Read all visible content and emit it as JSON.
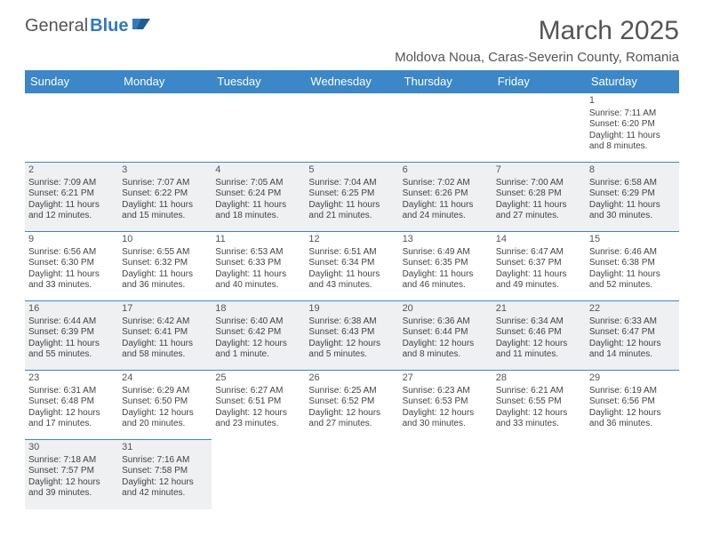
{
  "logo": {
    "part1": "General",
    "part2": "Blue"
  },
  "title": "March 2025",
  "location": "Moldova Noua, Caras-Severin County, Romania",
  "colors": {
    "header_bg": "#3b87c8",
    "header_text": "#ffffff",
    "shade_bg": "#eef0f1",
    "border": "#3b87c8",
    "text": "#444444",
    "title_text": "#555555"
  },
  "weekdays": [
    "Sunday",
    "Monday",
    "Tuesday",
    "Wednesday",
    "Thursday",
    "Friday",
    "Saturday"
  ],
  "weeks": [
    [
      null,
      null,
      null,
      null,
      null,
      null,
      {
        "n": "1",
        "sr": "Sunrise: 7:11 AM",
        "ss": "Sunset: 6:20 PM",
        "d1": "Daylight: 11 hours",
        "d2": "and 8 minutes."
      }
    ],
    [
      {
        "n": "2",
        "sr": "Sunrise: 7:09 AM",
        "ss": "Sunset: 6:21 PM",
        "d1": "Daylight: 11 hours",
        "d2": "and 12 minutes."
      },
      {
        "n": "3",
        "sr": "Sunrise: 7:07 AM",
        "ss": "Sunset: 6:22 PM",
        "d1": "Daylight: 11 hours",
        "d2": "and 15 minutes."
      },
      {
        "n": "4",
        "sr": "Sunrise: 7:05 AM",
        "ss": "Sunset: 6:24 PM",
        "d1": "Daylight: 11 hours",
        "d2": "and 18 minutes."
      },
      {
        "n": "5",
        "sr": "Sunrise: 7:04 AM",
        "ss": "Sunset: 6:25 PM",
        "d1": "Daylight: 11 hours",
        "d2": "and 21 minutes."
      },
      {
        "n": "6",
        "sr": "Sunrise: 7:02 AM",
        "ss": "Sunset: 6:26 PM",
        "d1": "Daylight: 11 hours",
        "d2": "and 24 minutes."
      },
      {
        "n": "7",
        "sr": "Sunrise: 7:00 AM",
        "ss": "Sunset: 6:28 PM",
        "d1": "Daylight: 11 hours",
        "d2": "and 27 minutes."
      },
      {
        "n": "8",
        "sr": "Sunrise: 6:58 AM",
        "ss": "Sunset: 6:29 PM",
        "d1": "Daylight: 11 hours",
        "d2": "and 30 minutes."
      }
    ],
    [
      {
        "n": "9",
        "sr": "Sunrise: 6:56 AM",
        "ss": "Sunset: 6:30 PM",
        "d1": "Daylight: 11 hours",
        "d2": "and 33 minutes."
      },
      {
        "n": "10",
        "sr": "Sunrise: 6:55 AM",
        "ss": "Sunset: 6:32 PM",
        "d1": "Daylight: 11 hours",
        "d2": "and 36 minutes."
      },
      {
        "n": "11",
        "sr": "Sunrise: 6:53 AM",
        "ss": "Sunset: 6:33 PM",
        "d1": "Daylight: 11 hours",
        "d2": "and 40 minutes."
      },
      {
        "n": "12",
        "sr": "Sunrise: 6:51 AM",
        "ss": "Sunset: 6:34 PM",
        "d1": "Daylight: 11 hours",
        "d2": "and 43 minutes."
      },
      {
        "n": "13",
        "sr": "Sunrise: 6:49 AM",
        "ss": "Sunset: 6:35 PM",
        "d1": "Daylight: 11 hours",
        "d2": "and 46 minutes."
      },
      {
        "n": "14",
        "sr": "Sunrise: 6:47 AM",
        "ss": "Sunset: 6:37 PM",
        "d1": "Daylight: 11 hours",
        "d2": "and 49 minutes."
      },
      {
        "n": "15",
        "sr": "Sunrise: 6:46 AM",
        "ss": "Sunset: 6:38 PM",
        "d1": "Daylight: 11 hours",
        "d2": "and 52 minutes."
      }
    ],
    [
      {
        "n": "16",
        "sr": "Sunrise: 6:44 AM",
        "ss": "Sunset: 6:39 PM",
        "d1": "Daylight: 11 hours",
        "d2": "and 55 minutes."
      },
      {
        "n": "17",
        "sr": "Sunrise: 6:42 AM",
        "ss": "Sunset: 6:41 PM",
        "d1": "Daylight: 11 hours",
        "d2": "and 58 minutes."
      },
      {
        "n": "18",
        "sr": "Sunrise: 6:40 AM",
        "ss": "Sunset: 6:42 PM",
        "d1": "Daylight: 12 hours",
        "d2": "and 1 minute."
      },
      {
        "n": "19",
        "sr": "Sunrise: 6:38 AM",
        "ss": "Sunset: 6:43 PM",
        "d1": "Daylight: 12 hours",
        "d2": "and 5 minutes."
      },
      {
        "n": "20",
        "sr": "Sunrise: 6:36 AM",
        "ss": "Sunset: 6:44 PM",
        "d1": "Daylight: 12 hours",
        "d2": "and 8 minutes."
      },
      {
        "n": "21",
        "sr": "Sunrise: 6:34 AM",
        "ss": "Sunset: 6:46 PM",
        "d1": "Daylight: 12 hours",
        "d2": "and 11 minutes."
      },
      {
        "n": "22",
        "sr": "Sunrise: 6:33 AM",
        "ss": "Sunset: 6:47 PM",
        "d1": "Daylight: 12 hours",
        "d2": "and 14 minutes."
      }
    ],
    [
      {
        "n": "23",
        "sr": "Sunrise: 6:31 AM",
        "ss": "Sunset: 6:48 PM",
        "d1": "Daylight: 12 hours",
        "d2": "and 17 minutes."
      },
      {
        "n": "24",
        "sr": "Sunrise: 6:29 AM",
        "ss": "Sunset: 6:50 PM",
        "d1": "Daylight: 12 hours",
        "d2": "and 20 minutes."
      },
      {
        "n": "25",
        "sr": "Sunrise: 6:27 AM",
        "ss": "Sunset: 6:51 PM",
        "d1": "Daylight: 12 hours",
        "d2": "and 23 minutes."
      },
      {
        "n": "26",
        "sr": "Sunrise: 6:25 AM",
        "ss": "Sunset: 6:52 PM",
        "d1": "Daylight: 12 hours",
        "d2": "and 27 minutes."
      },
      {
        "n": "27",
        "sr": "Sunrise: 6:23 AM",
        "ss": "Sunset: 6:53 PM",
        "d1": "Daylight: 12 hours",
        "d2": "and 30 minutes."
      },
      {
        "n": "28",
        "sr": "Sunrise: 6:21 AM",
        "ss": "Sunset: 6:55 PM",
        "d1": "Daylight: 12 hours",
        "d2": "and 33 minutes."
      },
      {
        "n": "29",
        "sr": "Sunrise: 6:19 AM",
        "ss": "Sunset: 6:56 PM",
        "d1": "Daylight: 12 hours",
        "d2": "and 36 minutes."
      }
    ],
    [
      {
        "n": "30",
        "sr": "Sunrise: 7:18 AM",
        "ss": "Sunset: 7:57 PM",
        "d1": "Daylight: 12 hours",
        "d2": "and 39 minutes."
      },
      {
        "n": "31",
        "sr": "Sunrise: 7:16 AM",
        "ss": "Sunset: 7:58 PM",
        "d1": "Daylight: 12 hours",
        "d2": "and 42 minutes."
      },
      null,
      null,
      null,
      null,
      null
    ]
  ]
}
